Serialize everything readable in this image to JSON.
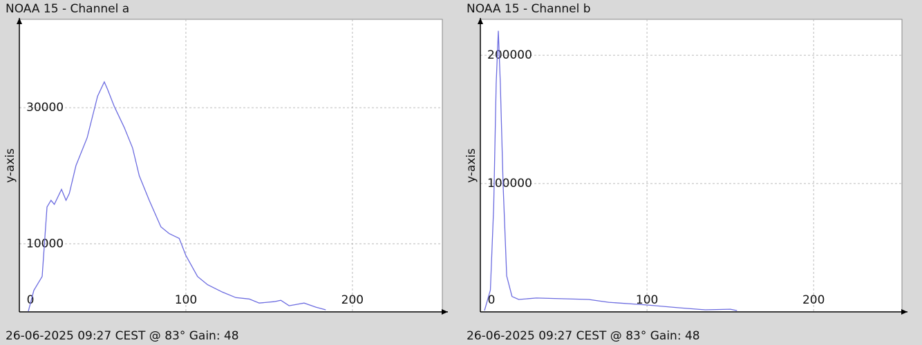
{
  "chart_data": [
    {
      "type": "line",
      "title": "NOAA 15 - Channel a",
      "ylabel": "y-axis",
      "footer": "26-06-2025 09:27 CEST @ 83° Gain: 48",
      "color": "#6b6be0",
      "grid": true,
      "xlim": [
        0,
        254
      ],
      "ylim": [
        0,
        43000
      ],
      "xticks": [
        0,
        100,
        200
      ],
      "yticks": [
        10000,
        30000
      ],
      "series": [
        {
          "x": [
            5.4,
            8.7,
            13.7,
            16.6,
            19,
            21,
            25.3,
            28,
            30,
            34,
            40.7,
            47,
            51,
            53,
            57,
            63,
            68,
            72,
            78,
            85,
            90,
            96,
            100,
            107,
            113,
            122,
            130,
            138,
            144,
            153,
            157,
            162,
            171,
            178,
            184
          ],
          "values": [
            100,
            3160,
            5200,
            15400,
            16400,
            15800,
            18000,
            16400,
            17400,
            21500,
            25600,
            31700,
            33800,
            32700,
            30200,
            27100,
            24100,
            20000,
            16400,
            12500,
            11500,
            10800,
            8300,
            5200,
            4000,
            2900,
            2100,
            1900,
            1300,
            1500,
            1700,
            900,
            1300,
            700,
            300
          ]
        }
      ]
    },
    {
      "type": "line",
      "title": "NOAA 15 - Channel b",
      "ylabel": "y-axis",
      "footer": "26-06-2025 09:27 CEST @ 83° Gain: 48",
      "color": "#6b6be0",
      "grid": true,
      "xlim": [
        0,
        253
      ],
      "ylim": [
        0,
        228000
      ],
      "xticks": [
        0,
        100,
        200
      ],
      "yticks": [
        100000,
        200000
      ],
      "series": [
        {
          "x": [
            2.5,
            6,
            8,
            9.5,
            10.8,
            12,
            13.7,
            15.8,
            19,
            23,
            33.6,
            65,
            77,
            100,
            119,
            135,
            150,
            154
          ],
          "values": [
            1000,
            17000,
            82000,
            178000,
            219000,
            178000,
            98000,
            28000,
            12000,
            9700,
            10800,
            9700,
            7500,
            5400,
            3200,
            1600,
            2100,
            1000
          ]
        }
      ]
    }
  ]
}
